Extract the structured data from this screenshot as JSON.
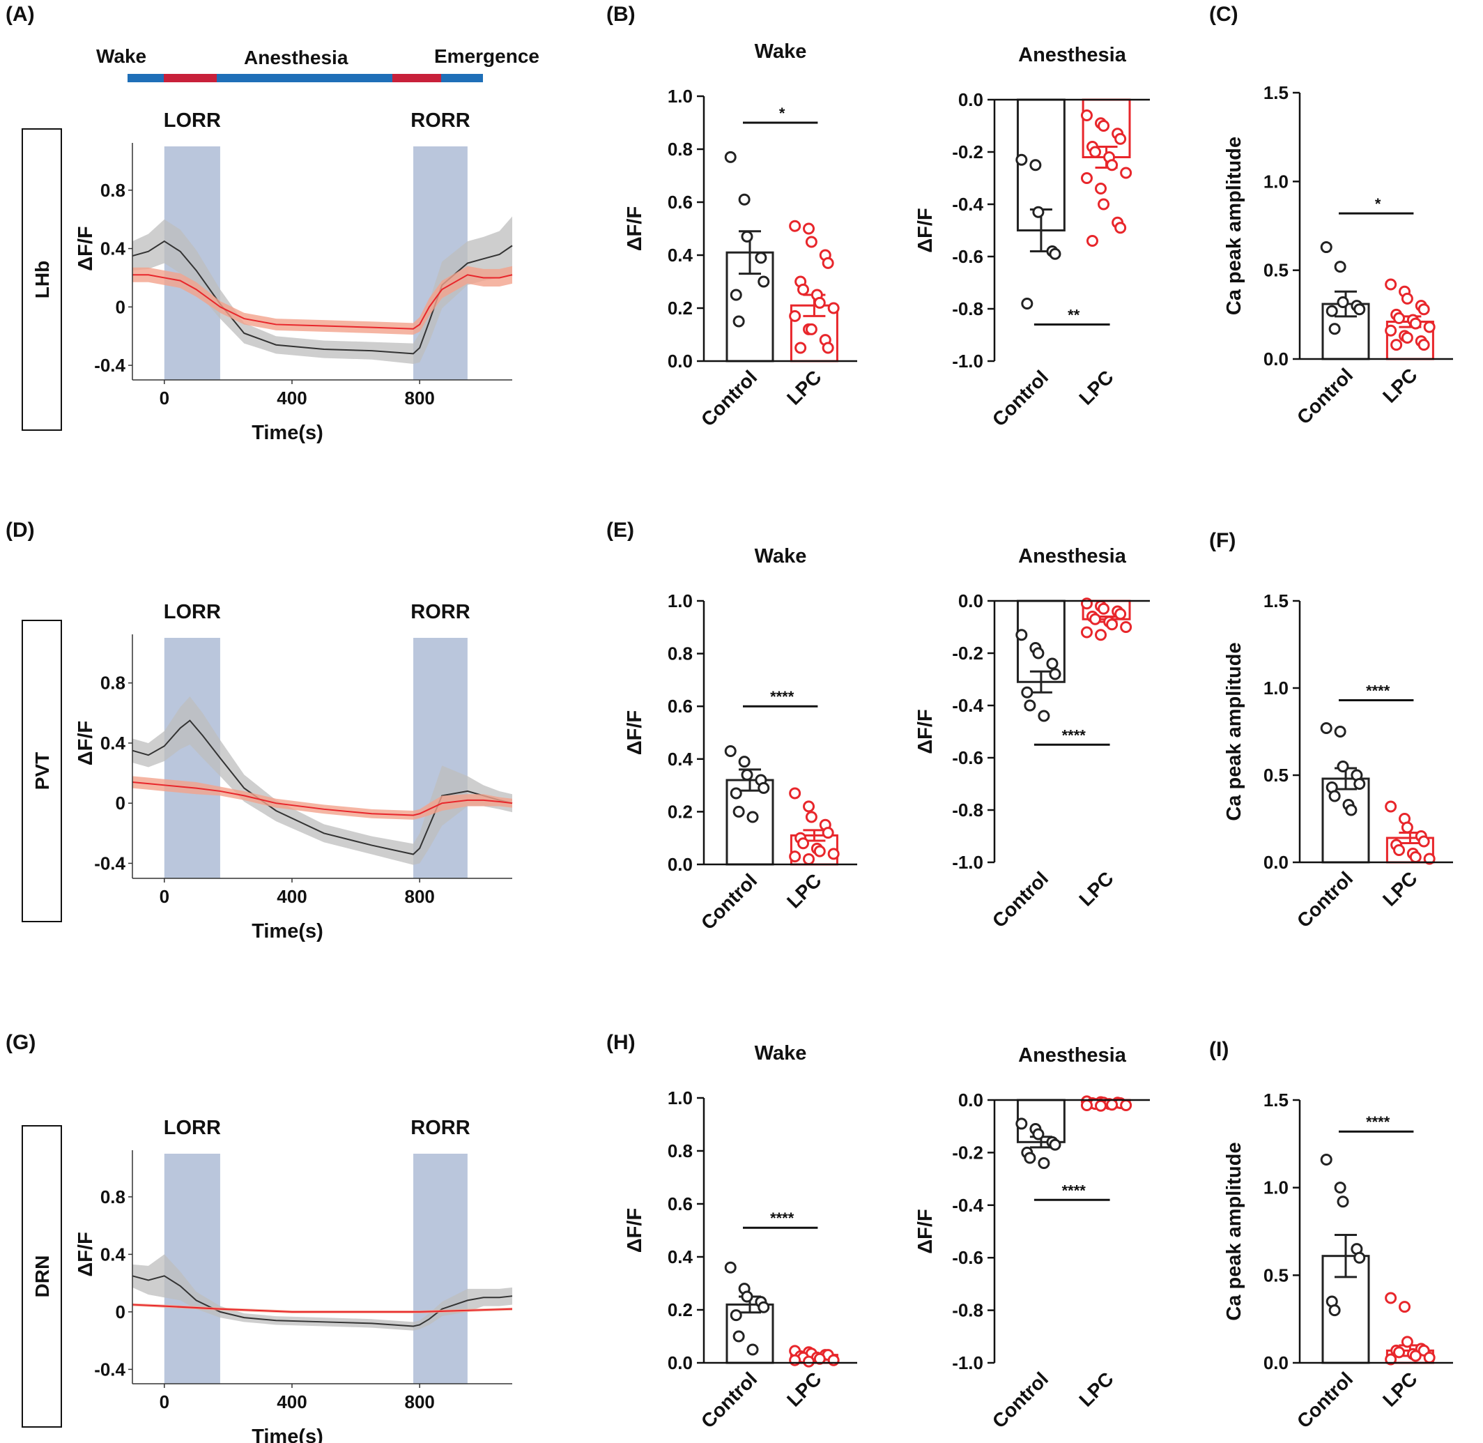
{
  "colors": {
    "control": "#222222",
    "lpc": "#e8262b",
    "control_band": "#bdbdbd",
    "lpc_band": "#f2a28c",
    "shade": "#aebcd6",
    "timeline_blue": "#1f6fb8",
    "timeline_red": "#c8203a"
  },
  "panel_labels": [
    "(A)",
    "(B)",
    "(C)",
    "(D)",
    "(E)",
    "(F)",
    "(G)",
    "(H)",
    "(I)"
  ],
  "timeline": {
    "labels": [
      "Wake",
      "Anesthesia",
      "Emergence"
    ]
  },
  "regions": [
    "LHb",
    "PVT",
    "DRN"
  ],
  "chart_data": [
    {
      "id": "A",
      "type": "line",
      "region": "LHb",
      "xlabel": "Time(s)",
      "ylabel": "ΔF/F",
      "xticks": [
        0,
        400,
        800
      ],
      "yticks": [
        -0.4,
        0,
        0.4,
        0.8
      ],
      "yticklabels": [
        "-0.4",
        "0",
        "0.4",
        "0.8"
      ],
      "xlim": [
        -100,
        1090
      ],
      "ylim": [
        -0.5,
        1.1
      ],
      "shaded": [
        {
          "label": "LORR",
          "x0": 0,
          "x1": 175
        },
        {
          "label": "RORR",
          "x0": 780,
          "x1": 950
        }
      ],
      "series": [
        {
          "group": "Control",
          "x": [
            -100,
            -50,
            0,
            50,
            100,
            175,
            250,
            350,
            500,
            650,
            780,
            800,
            830,
            870,
            950,
            1000,
            1050,
            1090
          ],
          "y": [
            0.35,
            0.38,
            0.45,
            0.38,
            0.25,
            0.02,
            -0.18,
            -0.26,
            -0.29,
            -0.3,
            -0.32,
            -0.28,
            -0.1,
            0.15,
            0.3,
            0.33,
            0.36,
            0.42
          ],
          "band": [
            0.1,
            0.12,
            0.15,
            0.15,
            0.14,
            0.1,
            0.07,
            0.06,
            0.06,
            0.06,
            0.07,
            0.1,
            0.14,
            0.16,
            0.15,
            0.15,
            0.16,
            0.2
          ]
        },
        {
          "group": "LPC",
          "x": [
            -100,
            -50,
            0,
            50,
            100,
            175,
            250,
            350,
            500,
            650,
            780,
            800,
            830,
            870,
            950,
            1000,
            1050,
            1090
          ],
          "y": [
            0.22,
            0.22,
            0.2,
            0.18,
            0.12,
            0.0,
            -0.08,
            -0.12,
            -0.13,
            -0.14,
            -0.15,
            -0.12,
            0.0,
            0.12,
            0.22,
            0.2,
            0.2,
            0.22
          ],
          "band": [
            0.05,
            0.05,
            0.05,
            0.05,
            0.05,
            0.04,
            0.04,
            0.04,
            0.04,
            0.04,
            0.04,
            0.05,
            0.06,
            0.06,
            0.06,
            0.06,
            0.06,
            0.06
          ]
        }
      ]
    },
    {
      "id": "B1",
      "type": "bar",
      "title": "Wake",
      "ylabel": "ΔF/F",
      "categories": [
        "Control",
        "LPC"
      ],
      "ylim": [
        0,
        1.0
      ],
      "yticks": [
        0,
        0.2,
        0.4,
        0.6,
        0.8,
        1.0
      ],
      "yticklabels": [
        "0.0",
        "0.2",
        "0.4",
        "0.6",
        "0.8",
        "1.0"
      ],
      "values": [
        0.41,
        0.21
      ],
      "sem": [
        0.08,
        0.04
      ],
      "points": [
        [
          0.77,
          0.61,
          0.47,
          0.39,
          0.3,
          0.25,
          0.15
        ],
        [
          0.51,
          0.5,
          0.45,
          0.4,
          0.37,
          0.3,
          0.27,
          0.25,
          0.22,
          0.2,
          0.17,
          0.12,
          0.12,
          0.08,
          0.05,
          0.05
        ]
      ],
      "sig": {
        "text": "*",
        "y": 0.9
      }
    },
    {
      "id": "B2",
      "type": "bar",
      "title": "Anesthesia",
      "ylabel": "ΔF/F",
      "categories": [
        "Control",
        "LPC"
      ],
      "ylim": [
        -1.0,
        0
      ],
      "yticks": [
        -1.0,
        -0.8,
        -0.6,
        -0.4,
        -0.2,
        0.0
      ],
      "yticklabels": [
        "-1.0",
        "-0.8",
        "-0.6",
        "-0.4",
        "-0.2",
        "0.0"
      ],
      "values": [
        -0.5,
        -0.22
      ],
      "sem": [
        0.08,
        0.04
      ],
      "points": [
        [
          -0.23,
          -0.25,
          -0.43,
          -0.58,
          -0.59,
          -0.78
        ],
        [
          -0.06,
          -0.09,
          -0.1,
          -0.13,
          -0.15,
          -0.18,
          -0.2,
          -0.22,
          -0.25,
          -0.28,
          -0.3,
          -0.34,
          -0.4,
          -0.47,
          -0.49,
          -0.54
        ]
      ],
      "sig": {
        "text": "**",
        "y": -0.86
      }
    },
    {
      "id": "C",
      "type": "bar",
      "ylabel": "Ca peak amplitude",
      "categories": [
        "Control",
        "LPC"
      ],
      "ylim": [
        0,
        1.5
      ],
      "yticks": [
        0,
        0.5,
        1.0,
        1.5
      ],
      "yticklabels": [
        "0.0",
        "0.5",
        "1.0",
        "1.5"
      ],
      "values": [
        0.31,
        0.21
      ],
      "sem": [
        0.07,
        0.03
      ],
      "points": [
        [
          0.63,
          0.52,
          0.32,
          0.3,
          0.28,
          0.27,
          0.17
        ],
        [
          0.42,
          0.38,
          0.34,
          0.3,
          0.28,
          0.25,
          0.23,
          0.22,
          0.2,
          0.18,
          0.16,
          0.13,
          0.12,
          0.1,
          0.08,
          0.08
        ]
      ],
      "sig": {
        "text": "*",
        "y": 0.82
      }
    },
    {
      "id": "D",
      "type": "line",
      "region": "PVT",
      "xlabel": "Time(s)",
      "ylabel": "ΔF/F",
      "xticks": [
        0,
        400,
        800
      ],
      "yticks": [
        -0.4,
        0,
        0.4,
        0.8
      ],
      "yticklabels": [
        "-0.4",
        "0",
        "0.4",
        "0.8"
      ],
      "xlim": [
        -100,
        1090
      ],
      "ylim": [
        -0.5,
        1.1
      ],
      "shaded": [
        {
          "label": "LORR",
          "x0": 0,
          "x1": 175
        },
        {
          "label": "RORR",
          "x0": 780,
          "x1": 950
        }
      ],
      "series": [
        {
          "group": "Control",
          "x": [
            -100,
            -50,
            0,
            50,
            80,
            120,
            175,
            250,
            350,
            500,
            650,
            780,
            800,
            830,
            870,
            950,
            1000,
            1050,
            1090
          ],
          "y": [
            0.35,
            0.32,
            0.38,
            0.5,
            0.55,
            0.45,
            0.3,
            0.1,
            -0.05,
            -0.2,
            -0.28,
            -0.34,
            -0.3,
            -0.15,
            0.05,
            0.08,
            0.05,
            0.02,
            0.0
          ],
          "band": [
            0.08,
            0.08,
            0.1,
            0.14,
            0.16,
            0.15,
            0.12,
            0.09,
            0.07,
            0.06,
            0.06,
            0.07,
            0.1,
            0.15,
            0.2,
            0.1,
            0.07,
            0.06,
            0.06
          ]
        },
        {
          "group": "LPC",
          "x": [
            -100,
            -50,
            0,
            50,
            100,
            175,
            250,
            350,
            500,
            650,
            780,
            800,
            830,
            870,
            950,
            1000,
            1050,
            1090
          ],
          "y": [
            0.14,
            0.13,
            0.12,
            0.11,
            0.1,
            0.08,
            0.05,
            0.0,
            -0.04,
            -0.07,
            -0.08,
            -0.07,
            -0.04,
            0.0,
            0.02,
            0.02,
            0.01,
            0.0
          ],
          "band": [
            0.04,
            0.04,
            0.04,
            0.04,
            0.04,
            0.03,
            0.03,
            0.03,
            0.03,
            0.03,
            0.03,
            0.03,
            0.04,
            0.05,
            0.04,
            0.04,
            0.03,
            0.03
          ]
        }
      ]
    },
    {
      "id": "E1",
      "type": "bar",
      "title": "Wake",
      "ylabel": "ΔF/F",
      "categories": [
        "Control",
        "LPC"
      ],
      "ylim": [
        0,
        1.0
      ],
      "yticks": [
        0,
        0.2,
        0.4,
        0.6,
        0.8,
        1.0
      ],
      "yticklabels": [
        "0.0",
        "0.2",
        "0.4",
        "0.6",
        "0.8",
        "1.0"
      ],
      "values": [
        0.32,
        0.11
      ],
      "sem": [
        0.04,
        0.02
      ],
      "points": [
        [
          0.43,
          0.39,
          0.34,
          0.32,
          0.29,
          0.27,
          0.2,
          0.18
        ],
        [
          0.27,
          0.22,
          0.18,
          0.15,
          0.12,
          0.1,
          0.08,
          0.06,
          0.05,
          0.04,
          0.03,
          0.02
        ]
      ],
      "sig": {
        "text": "****",
        "y": 0.6
      }
    },
    {
      "id": "E2",
      "type": "bar",
      "title": "Anesthesia",
      "ylabel": "ΔF/F",
      "categories": [
        "Control",
        "LPC"
      ],
      "ylim": [
        -1.0,
        0
      ],
      "yticks": [
        -1.0,
        -0.8,
        -0.6,
        -0.4,
        -0.2,
        0.0
      ],
      "yticklabels": [
        "-1.0",
        "-0.8",
        "-0.6",
        "-0.4",
        "-0.2",
        "0.0"
      ],
      "values": [
        -0.31,
        -0.07
      ],
      "sem": [
        0.04,
        0.01
      ],
      "points": [
        [
          -0.13,
          -0.18,
          -0.2,
          -0.24,
          -0.28,
          -0.35,
          -0.4,
          -0.44
        ],
        [
          -0.01,
          -0.02,
          -0.03,
          -0.04,
          -0.05,
          -0.06,
          -0.07,
          -0.08,
          -0.09,
          -0.1,
          -0.12,
          -0.13
        ]
      ],
      "sig": {
        "text": "****",
        "y": -0.55
      }
    },
    {
      "id": "F",
      "type": "bar",
      "ylabel": "Ca peak amplitude",
      "categories": [
        "Control",
        "LPC"
      ],
      "ylim": [
        0,
        1.5
      ],
      "yticks": [
        0,
        0.5,
        1.0,
        1.5
      ],
      "yticklabels": [
        "0.0",
        "0.5",
        "1.0",
        "1.5"
      ],
      "values": [
        0.48,
        0.14
      ],
      "sem": [
        0.06,
        0.03
      ],
      "points": [
        [
          0.77,
          0.75,
          0.55,
          0.5,
          0.45,
          0.43,
          0.38,
          0.33,
          0.3
        ],
        [
          0.32,
          0.25,
          0.2,
          0.15,
          0.12,
          0.1,
          0.07,
          0.05,
          0.03,
          0.02
        ]
      ],
      "sig": {
        "text": "****",
        "y": 0.93
      }
    },
    {
      "id": "G",
      "type": "line",
      "region": "DRN",
      "xlabel": "Time(s)",
      "ylabel": "ΔF/F",
      "xticks": [
        0,
        400,
        800
      ],
      "yticks": [
        -0.4,
        0,
        0.4,
        0.8
      ],
      "yticklabels": [
        "-0.4",
        "0",
        "0.4",
        "0.8"
      ],
      "xlim": [
        -100,
        1090
      ],
      "ylim": [
        -0.5,
        1.1
      ],
      "shaded": [
        {
          "label": "LORR",
          "x0": 0,
          "x1": 175
        },
        {
          "label": "RORR",
          "x0": 780,
          "x1": 950
        }
      ],
      "series": [
        {
          "group": "Control",
          "x": [
            -100,
            -50,
            0,
            50,
            100,
            175,
            250,
            350,
            500,
            650,
            780,
            800,
            830,
            870,
            950,
            1000,
            1050,
            1090
          ],
          "y": [
            0.25,
            0.22,
            0.25,
            0.18,
            0.08,
            0.0,
            -0.04,
            -0.06,
            -0.07,
            -0.08,
            -0.1,
            -0.09,
            -0.05,
            0.02,
            0.08,
            0.1,
            0.1,
            0.11
          ],
          "band": [
            0.08,
            0.1,
            0.15,
            0.1,
            0.06,
            0.04,
            0.03,
            0.03,
            0.03,
            0.03,
            0.03,
            0.03,
            0.04,
            0.05,
            0.08,
            0.06,
            0.06,
            0.06
          ]
        },
        {
          "group": "LPC",
          "x": [
            -100,
            0,
            175,
            400,
            600,
            800,
            950,
            1090
          ],
          "y": [
            0.05,
            0.04,
            0.02,
            0.0,
            0.0,
            0.0,
            0.01,
            0.02
          ],
          "band": [
            0.01,
            0.01,
            0.01,
            0.01,
            0.01,
            0.01,
            0.01,
            0.01
          ]
        }
      ]
    },
    {
      "id": "H1",
      "type": "bar",
      "title": "Wake",
      "ylabel": "ΔF/F",
      "categories": [
        "Control",
        "LPC"
      ],
      "ylim": [
        0,
        1.0
      ],
      "yticks": [
        0,
        0.2,
        0.4,
        0.6,
        0.8,
        1.0
      ],
      "yticklabels": [
        "0.0",
        "0.2",
        "0.4",
        "0.6",
        "0.8",
        "1.0"
      ],
      "values": [
        0.22,
        0.03
      ],
      "sem": [
        0.03,
        0.005
      ],
      "points": [
        [
          0.36,
          0.28,
          0.25,
          0.23,
          0.21,
          0.18,
          0.1,
          0.05
        ],
        [
          0.045,
          0.04,
          0.035,
          0.03,
          0.03,
          0.025,
          0.02,
          0.02,
          0.015,
          0.01,
          0.01,
          0.005
        ]
      ],
      "sig": {
        "text": "****",
        "y": 0.51
      }
    },
    {
      "id": "H2",
      "type": "bar",
      "title": "Anesthesia",
      "ylabel": "ΔF/F",
      "categories": [
        "Control",
        "LPC"
      ],
      "ylim": [
        -1.0,
        0
      ],
      "yticks": [
        -1.0,
        -0.8,
        -0.6,
        -0.4,
        -0.2,
        0.0
      ],
      "yticklabels": [
        "-1.0",
        "-0.8",
        "-0.6",
        "-0.4",
        "-0.2",
        "0.0"
      ],
      "values": [
        -0.16,
        -0.01
      ],
      "sem": [
        0.02,
        0.003
      ],
      "points": [
        [
          -0.09,
          -0.11,
          -0.13,
          -0.16,
          -0.17,
          -0.2,
          -0.22,
          -0.24
        ],
        [
          -0.005,
          -0.008,
          -0.01,
          -0.01,
          -0.012,
          -0.012,
          -0.015,
          -0.015,
          -0.018,
          -0.02,
          -0.02,
          -0.022
        ]
      ],
      "sig": {
        "text": "****",
        "y": -0.38
      }
    },
    {
      "id": "I",
      "type": "bar",
      "ylabel": "Ca peak amplitude",
      "categories": [
        "Control",
        "LPC"
      ],
      "ylim": [
        0,
        1.5
      ],
      "yticks": [
        0,
        0.5,
        1.0,
        1.5
      ],
      "yticklabels": [
        "0.0",
        "0.5",
        "1.0",
        "1.5"
      ],
      "values": [
        0.61,
        0.07
      ],
      "sem": [
        0.12,
        0.03
      ],
      "points": [
        [
          1.16,
          1.0,
          0.92,
          0.65,
          0.6,
          0.35,
          0.3
        ],
        [
          0.37,
          0.32,
          0.12,
          0.08,
          0.07,
          0.07,
          0.06,
          0.05,
          0.04,
          0.03,
          0.02
        ]
      ],
      "sig": {
        "text": "****",
        "y": 1.32
      }
    }
  ]
}
